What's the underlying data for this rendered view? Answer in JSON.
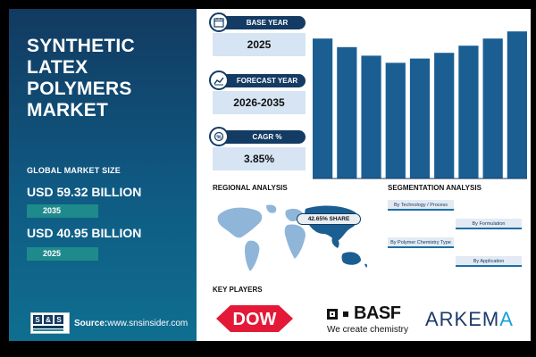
{
  "left_panel": {
    "title": "SYNTHETIC LATEX POLYMERS MARKET",
    "global_market_size_label": "GLOBAL MARKET SIZE",
    "value_2035": "USD 59.32 BILLION",
    "year_2035": "2035",
    "value_2025": "USD 40.95 BILLION",
    "year_2025": "2025",
    "source_label": "Source:",
    "source_url": "www.snsinsider.com",
    "logo_text": "S&S INSIDER Strategy & Stats"
  },
  "cards": [
    {
      "label": "BASE YEAR",
      "value": "2025",
      "icon": "calendar-icon"
    },
    {
      "label": "FORECAST YEAR",
      "value": "2026-2035",
      "icon": "chart-icon"
    },
    {
      "label": "CAGR %",
      "value": "3.85%",
      "icon": "growth-icon"
    }
  ],
  "chart_data": {
    "type": "bar",
    "values": [
      98,
      92,
      86,
      81,
      84,
      88,
      93,
      98,
      103
    ],
    "ylim": [
      0,
      110
    ],
    "color": "#1b5e92"
  },
  "regional": {
    "title": "REGIONAL ANALYSIS",
    "share_label": "42.65% SHARE"
  },
  "segmentation": {
    "title": "SEGMENTATION ANALYSIS",
    "items": [
      "By Technology / Process",
      "By Formulation",
      "By Polymer Chemistry Type",
      "By Application"
    ]
  },
  "key_players": {
    "title": "KEY PLAYERS",
    "dow": "DOW",
    "basf": "BASF",
    "basf_tagline": "We create chemistry",
    "arkema_pre": "ARKEM",
    "arkema_post": "A"
  },
  "colors": {
    "navy": "#133b63",
    "teal": "#1f8a8c",
    "card_bg": "#d6e4f3",
    "dow_red": "#e31937",
    "arkema_blue": "#1d3a6b"
  }
}
